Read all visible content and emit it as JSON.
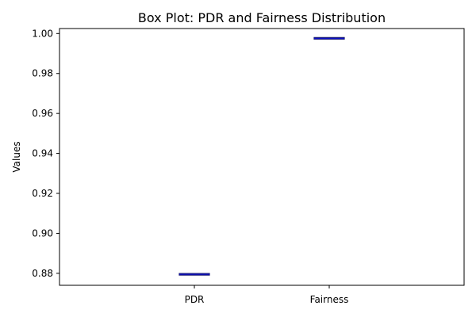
{
  "chart_data": {
    "type": "box",
    "title": "Box Plot: PDR and Fairness Distribution",
    "xlabel": "",
    "ylabel": "Values",
    "categories": [
      "PDR",
      "Fairness"
    ],
    "boxes": [
      {
        "name": "PDR",
        "min": 0.8794,
        "q1": 0.8794,
        "median": 0.8795,
        "q3": 0.8796,
        "max": 0.8796
      },
      {
        "name": "Fairness",
        "min": 0.9975,
        "q1": 0.9975,
        "median": 0.9976,
        "q3": 0.9977,
        "max": 0.9977
      }
    ],
    "ylim": [
      0.874,
      1.0025
    ],
    "yticks": [
      0.88,
      0.9,
      0.92,
      0.94,
      0.96,
      0.98,
      1.0
    ],
    "ytick_labels": [
      "0.88",
      "0.90",
      "0.92",
      "0.94",
      "0.96",
      "0.98",
      "1.00"
    ],
    "grid": false,
    "colors": {
      "box_edge": "#191970",
      "median": "#0000cd",
      "box_fill": "#add8e6",
      "axis": "#000000"
    }
  }
}
